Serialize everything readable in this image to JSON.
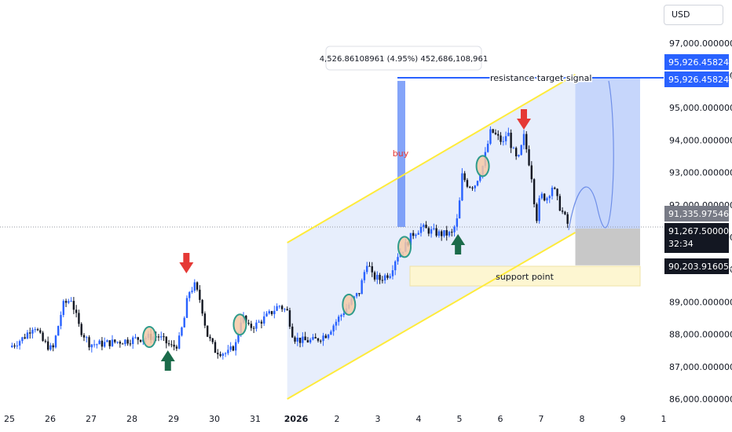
{
  "currency": "USD",
  "colors": {
    "up": "#2962ff",
    "down": "#131722",
    "channel_line": "#ffeb3b",
    "channel_fill": "#e3ebfb",
    "blue_box": "#c6d6fb",
    "gray_box": "#c8c8c8",
    "support_fill": "#fdf6d1",
    "arrow_down": "#e53935",
    "arrow_up": "#1b6b4a",
    "badge_blue": "#2962ff",
    "badge_gray": "#787b86",
    "badge_black": "#131722"
  },
  "annotations": {
    "measure": "4,526.86108961 (4.95%) 452,686,108,961",
    "buy": "buy",
    "resistance": "resistance target signal",
    "support": "support  point"
  },
  "price_badges": {
    "target_1": "95,926.45824479",
    "target_2": "95,926.45824479",
    "level": "91,335.97546160",
    "current": "91,267.50000000",
    "countdown": "32:34",
    "stop": "90,203.91605049"
  },
  "chart_data": {
    "type": "candlestick",
    "y_axis": {
      "ticks": [
        86000,
        87000,
        88000,
        89000,
        90000,
        91000,
        92000,
        93000,
        94000,
        95000,
        96000,
        97000
      ],
      "tick_labels": [
        "86,000.00000000",
        "87,000.00000000",
        "88,000.00000000",
        "89,000.00000000",
        "90,000.00000000",
        "91,000.00000000",
        "92,000.00000000",
        "93,000.00000000",
        "94,000.00000000",
        "95,000.00000000",
        "96,000.00000000",
        "97,000.00000000"
      ],
      "range": [
        85900,
        97500
      ]
    },
    "x_axis": {
      "labels": [
        "25",
        "26",
        "27",
        "28",
        "29",
        "30",
        "31",
        "2026",
        "2",
        "3",
        "4",
        "5",
        "6",
        "7",
        "8",
        "9",
        "1"
      ],
      "range": [
        "Dec 25",
        "Jan 10"
      ]
    },
    "key_levels": {
      "resistance_target": 95926.46,
      "current_price": 91267.5,
      "level": 91335.98,
      "stop": 90203.92
    },
    "price_path": [
      {
        "day": 0.0,
        "price": 87600
      },
      {
        "day": 0.35,
        "price": 87900
      },
      {
        "day": 0.6,
        "price": 88300
      },
      {
        "day": 0.8,
        "price": 87800
      },
      {
        "day": 1.05,
        "price": 87500
      },
      {
        "day": 1.3,
        "price": 88900
      },
      {
        "day": 1.5,
        "price": 89100
      },
      {
        "day": 1.7,
        "price": 88200
      },
      {
        "day": 1.95,
        "price": 87700
      },
      {
        "day": 2.2,
        "price": 87700
      },
      {
        "day": 2.8,
        "price": 87800
      },
      {
        "day": 3.3,
        "price": 87900
      },
      {
        "day": 3.6,
        "price": 87950
      },
      {
        "day": 3.95,
        "price": 87600
      },
      {
        "day": 4.1,
        "price": 87700
      },
      {
        "day": 4.25,
        "price": 88500
      },
      {
        "day": 4.35,
        "price": 89300
      },
      {
        "day": 4.5,
        "price": 89500
      },
      {
        "day": 4.65,
        "price": 89000
      },
      {
        "day": 4.8,
        "price": 88000
      },
      {
        "day": 5.0,
        "price": 87500
      },
      {
        "day": 5.3,
        "price": 87400
      },
      {
        "day": 5.5,
        "price": 87700
      },
      {
        "day": 5.65,
        "price": 88600
      },
      {
        "day": 5.8,
        "price": 88200
      },
      {
        "day": 6.0,
        "price": 88300
      },
      {
        "day": 6.3,
        "price": 88600
      },
      {
        "day": 6.55,
        "price": 88900
      },
      {
        "day": 6.75,
        "price": 88700
      },
      {
        "day": 6.9,
        "price": 87900
      },
      {
        "day": 7.1,
        "price": 87800
      },
      {
        "day": 7.4,
        "price": 87800
      },
      {
        "day": 7.7,
        "price": 88000
      },
      {
        "day": 8.0,
        "price": 88500
      },
      {
        "day": 8.3,
        "price": 89000
      },
      {
        "day": 8.5,
        "price": 89300
      },
      {
        "day": 8.7,
        "price": 90300
      },
      {
        "day": 8.8,
        "price": 89800
      },
      {
        "day": 9.0,
        "price": 89700
      },
      {
        "day": 9.25,
        "price": 89900
      },
      {
        "day": 9.4,
        "price": 90400
      },
      {
        "day": 9.6,
        "price": 90700
      },
      {
        "day": 9.8,
        "price": 91100
      },
      {
        "day": 10.0,
        "price": 91300
      },
      {
        "day": 10.2,
        "price": 91200
      },
      {
        "day": 10.45,
        "price": 91100
      },
      {
        "day": 10.75,
        "price": 91100
      },
      {
        "day": 10.9,
        "price": 91600
      },
      {
        "day": 11.0,
        "price": 92900
      },
      {
        "day": 11.15,
        "price": 92600
      },
      {
        "day": 11.3,
        "price": 92600
      },
      {
        "day": 11.5,
        "price": 93200
      },
      {
        "day": 11.7,
        "price": 94300
      },
      {
        "day": 11.85,
        "price": 94100
      },
      {
        "day": 12.0,
        "price": 93900
      },
      {
        "day": 12.1,
        "price": 94300
      },
      {
        "day": 12.2,
        "price": 93800
      },
      {
        "day": 12.35,
        "price": 93300
      },
      {
        "day": 12.5,
        "price": 94100
      },
      {
        "day": 12.6,
        "price": 93500
      },
      {
        "day": 12.7,
        "price": 92800
      },
      {
        "day": 12.8,
        "price": 91500
      },
      {
        "day": 12.9,
        "price": 92300
      },
      {
        "day": 13.05,
        "price": 92200
      },
      {
        "day": 13.2,
        "price": 92600
      },
      {
        "day": 13.35,
        "price": 92000
      },
      {
        "day": 13.5,
        "price": 91600
      },
      {
        "day": 13.6,
        "price": 91300
      }
    ],
    "signals": {
      "down_arrows": [
        4.3,
        12.5
      ],
      "up_arrows": [
        3.85,
        10.9
      ],
      "circles": [
        3.4,
        5.6,
        8.25,
        9.6,
        11.5
      ]
    }
  }
}
